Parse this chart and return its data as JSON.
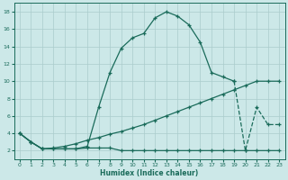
{
  "xlabel": "Humidex (Indice chaleur)",
  "bg_color": "#cce8e8",
  "grid_color": "#aacccc",
  "line_color": "#1a6b5a",
  "xlim": [
    -0.5,
    23.5
  ],
  "ylim": [
    1,
    19
  ],
  "xticks": [
    0,
    1,
    2,
    3,
    4,
    5,
    6,
    7,
    8,
    9,
    10,
    11,
    12,
    13,
    14,
    15,
    16,
    17,
    18,
    19,
    20,
    21,
    22,
    23
  ],
  "yticks": [
    2,
    4,
    6,
    8,
    10,
    12,
    14,
    16,
    18
  ],
  "main_x": [
    0,
    1,
    2,
    3,
    4,
    5,
    6,
    7,
    8,
    9,
    10,
    11,
    12,
    13,
    14,
    15,
    16,
    17,
    18,
    19
  ],
  "main_y": [
    4,
    3,
    2.2,
    2.2,
    2.2,
    2.2,
    2.5,
    7.0,
    11.0,
    13.8,
    15.0,
    15.5,
    17.3,
    18.0,
    17.5,
    16.5,
    14.5,
    11.0,
    10.5,
    10.0
  ],
  "line2_x": [
    0,
    1,
    2,
    3,
    4,
    5,
    6,
    7,
    8,
    9,
    10,
    11,
    12,
    13,
    14,
    15,
    16,
    17,
    18,
    19,
    20,
    21,
    22,
    23
  ],
  "line2_y": [
    4,
    3,
    2.2,
    2.3,
    2.5,
    2.8,
    3.2,
    3.5,
    3.9,
    4.2,
    4.6,
    5.0,
    5.5,
    6.0,
    6.5,
    7.0,
    7.5,
    8.0,
    8.5,
    9.0,
    9.5,
    10.0,
    10.0,
    10.0
  ],
  "line3_x": [
    0,
    1,
    2,
    3,
    4,
    5,
    6,
    7,
    8,
    9,
    10,
    11,
    12,
    13,
    14,
    15,
    16,
    17,
    18,
    19,
    20,
    21,
    22,
    23
  ],
  "line3_y": [
    4,
    3,
    2.2,
    2.2,
    2.2,
    2.2,
    2.3,
    2.3,
    2.3,
    2.0,
    2.0,
    2.0,
    2.0,
    2.0,
    2.0,
    2.0,
    2.0,
    2.0,
    2.0,
    2.0,
    2.0,
    2.0,
    2.0,
    2.0
  ],
  "spike_x": [
    19,
    20,
    21,
    22,
    23
  ],
  "spike_y": [
    10.0,
    2.0,
    7.0,
    5.0,
    5.0
  ]
}
